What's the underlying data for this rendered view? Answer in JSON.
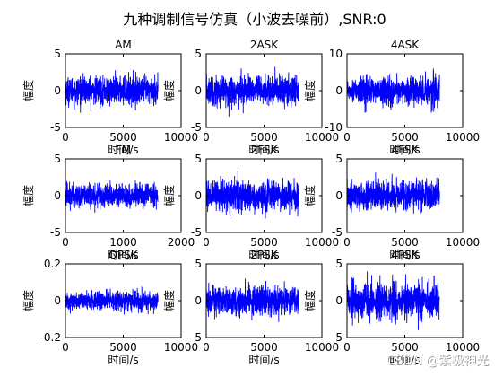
{
  "figure": {
    "title": "九种调制信号仿真（小波去噪前）,SNR:0",
    "watermark": "CSDN @紫极神光"
  },
  "colors": {
    "signal": "#0000ff",
    "axes": "#000000",
    "background": "#ffffff"
  },
  "chart_data": [
    {
      "type": "line",
      "title": "AM",
      "xlabel": "时间/s",
      "ylabel": "幅度",
      "xlim": [
        0,
        10000
      ],
      "ylim": [
        -5,
        5
      ],
      "xticks": [
        "0",
        "5000",
        "10000"
      ],
      "yticks": [
        "5",
        "0",
        "-5"
      ],
      "series": [
        {
          "x_end": 8000,
          "amplitude": 1.5,
          "peak": 3.0,
          "envelope": "steady"
        }
      ]
    },
    {
      "type": "line",
      "title": "2ASK",
      "xlabel": "时间/s",
      "ylabel": "幅度",
      "xlim": [
        0,
        10000
      ],
      "ylim": [
        -5,
        5
      ],
      "xticks": [
        "0",
        "5000",
        "10000"
      ],
      "yticks": [
        "5",
        "0",
        "-5"
      ],
      "series": [
        {
          "x_end": 8000,
          "amplitude": 1.6,
          "peak": 4.2,
          "envelope": "steady"
        }
      ]
    },
    {
      "type": "line",
      "title": "4ASK",
      "xlabel": "时间/s",
      "ylabel": "幅度",
      "xlim": [
        0,
        10000
      ],
      "ylim": [
        -10,
        10
      ],
      "xticks": [
        "0",
        "5000",
        "10000"
      ],
      "yticks": [
        "10",
        "0",
        "-10"
      ],
      "series": [
        {
          "x_end": 8000,
          "amplitude": 2.8,
          "peak": 6.0,
          "envelope": "steps"
        }
      ]
    },
    {
      "type": "line",
      "title": "FM",
      "xlabel": "时间/s",
      "ylabel": "幅度",
      "xlim": [
        0,
        2000
      ],
      "ylim": [
        -5,
        5
      ],
      "xticks": [
        "0",
        "1000",
        "2000"
      ],
      "yticks": [
        "5",
        "0",
        "-5"
      ],
      "series": [
        {
          "x_end": 1600,
          "amplitude": 1.3,
          "peak": 2.5,
          "envelope": "steady"
        }
      ]
    },
    {
      "type": "line",
      "title": "2FSK",
      "xlabel": "时间/s",
      "ylabel": "幅度",
      "xlim": [
        0,
        10000
      ],
      "ylim": [
        -5,
        5
      ],
      "xticks": [
        "0",
        "5000",
        "10000"
      ],
      "yticks": [
        "5",
        "0",
        "-5"
      ],
      "series": [
        {
          "x_end": 8000,
          "amplitude": 1.6,
          "peak": 4.0,
          "envelope": "steady"
        }
      ]
    },
    {
      "type": "line",
      "title": "4FSK",
      "xlabel": "时间/s",
      "ylabel": "幅度",
      "xlim": [
        0,
        10000
      ],
      "ylim": [
        -5,
        5
      ],
      "xticks": [
        "0",
        "5000",
        "10000"
      ],
      "yticks": [
        "5",
        "0",
        "-5"
      ],
      "series": [
        {
          "x_end": 8000,
          "amplitude": 1.6,
          "peak": 4.0,
          "envelope": "steady"
        }
      ]
    },
    {
      "type": "line",
      "title": "QPSK",
      "xlabel": "时间/s",
      "ylabel": "幅度",
      "xlim": [
        0,
        10000
      ],
      "ylim": [
        -0.2,
        0.2
      ],
      "xticks": [
        "0",
        "5000",
        "10000"
      ],
      "yticks": [
        "0.2",
        "0",
        "-0.2"
      ],
      "series": [
        {
          "x_end": 8000,
          "amplitude": 0.04,
          "peak": 0.08,
          "envelope": "steady"
        }
      ]
    },
    {
      "type": "line",
      "title": "2PSK",
      "xlabel": "时间/s",
      "ylabel": "幅度",
      "xlim": [
        0,
        10000
      ],
      "ylim": [
        -5,
        5
      ],
      "xticks": [
        "0",
        "5000",
        "10000"
      ],
      "yticks": [
        "5",
        "0",
        "-5"
      ],
      "series": [
        {
          "x_end": 8000,
          "amplitude": 1.6,
          "peak": 4.3,
          "envelope": "steady"
        }
      ]
    },
    {
      "type": "line",
      "title": "4PSK",
      "xlabel": "时间/s",
      "ylabel": "幅度",
      "xlim": [
        0,
        10000
      ],
      "ylim": [
        -5,
        5
      ],
      "xticks": [
        "0",
        "5000",
        "10000"
      ],
      "yticks": [
        "5",
        "0",
        "-5"
      ],
      "series": [
        {
          "x_end": 8000,
          "amplitude": 1.8,
          "peak": 4.0,
          "envelope": "bursts"
        }
      ]
    }
  ]
}
